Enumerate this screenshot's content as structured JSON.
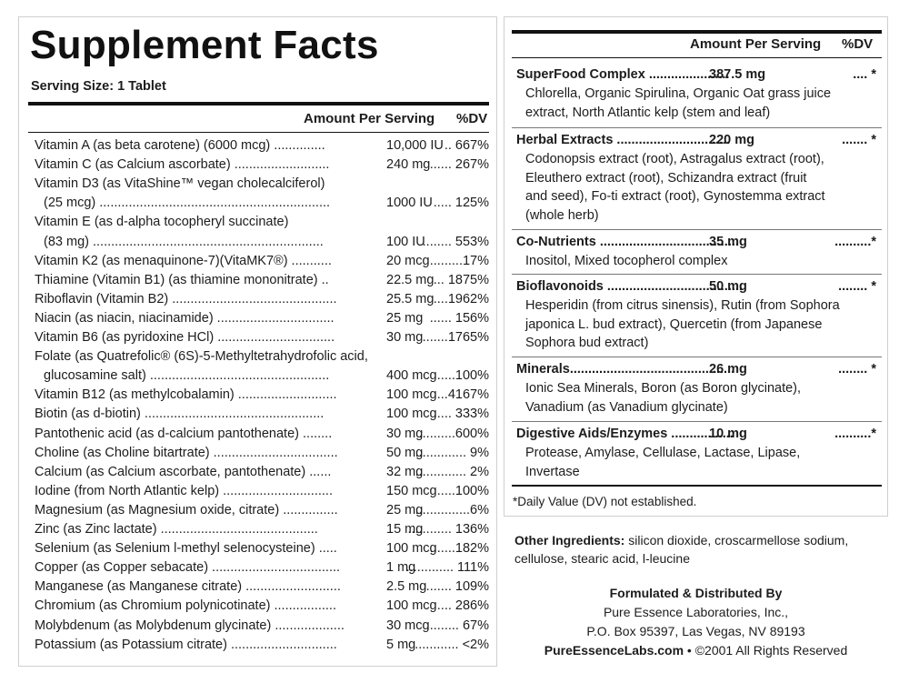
{
  "title": "Supplement Facts",
  "serving_size": "Serving Size: 1 Tablet",
  "headers": {
    "amount_per_serving": "Amount Per Serving",
    "dv": "%DV"
  },
  "vitamins": [
    {
      "name": "Vitamin A (as beta carotene) (6000 mcg) ..............",
      "amount": "10,000 IU",
      "dv": ".. 667%"
    },
    {
      "name": "Vitamin C (as Calcium ascorbate) ..........................",
      "amount": "240 mg",
      "dv": "...... 267%"
    },
    {
      "name": "Vitamin D3 (as VitaShine™ vegan cholecalciferol)",
      "amount": "",
      "dv": ""
    },
    {
      "name": "(25 mcg) ...............................................................",
      "amount": "1000 IU",
      "dv": "..... 125%"
    },
    {
      "name": "Vitamin E (as d-alpha tocopheryl succinate)",
      "amount": "",
      "dv": ""
    },
    {
      "name": "(83 mg) ...............................................................",
      "amount": "100 IU",
      "dv": "........ 553%"
    },
    {
      "name": "Vitamin K2 (as menaquinone-7)(VitaMK7®) ...........",
      "amount": "20 mcg",
      "dv": ".........17%"
    },
    {
      "name": "Thiamine (Vitamin B1) (as thiamine mononitrate) ..",
      "amount": "22.5 mg",
      "dv": "... 1875%"
    },
    {
      "name": "Riboflavin (Vitamin B2) .............................................",
      "amount": "25.5 mg",
      "dv": "....1962%"
    },
    {
      "name": "Niacin (as niacin, niacinamide) ................................",
      "amount": "25 mg",
      "dv": "...... 156%"
    },
    {
      "name": "Vitamin B6 (as pyridoxine HCl) ................................",
      "amount": "30 mg",
      "dv": ".......1765%"
    },
    {
      "name": "Folate (as Quatrefolic® (6S)-5-Methyltetrahydrofolic acid,",
      "amount": "",
      "dv": ""
    },
    {
      "name": "glucosamine salt) .................................................",
      "amount": "400 mcg",
      "dv": ".....100%"
    },
    {
      "name": "Vitamin B12 (as methylcobalamin) ...........................",
      "amount": "100 mcg",
      "dv": "...4167%"
    },
    {
      "name": "Biotin (as d-biotin) .................................................",
      "amount": "100 mcg",
      "dv": "..... 333%"
    },
    {
      "name": "Pantothenic acid (as d-calcium pantothenate) ........",
      "amount": "30 mg",
      "dv": "..........600%"
    },
    {
      "name": "Choline (as Choline bitartrate) ..................................",
      "amount": "50 mg",
      "dv": ".............. 9%"
    },
    {
      "name": "Calcium (as Calcium ascorbate, pantothenate) ......",
      "amount": "32 mg",
      "dv": ".............. 2%"
    },
    {
      "name": "Iodine (from North Atlantic kelp) ..............................",
      "amount": "150 mcg",
      "dv": ".....100%"
    },
    {
      "name": "Magnesium (as Magnesium oxide, citrate) ...............",
      "amount": "25 mg",
      "dv": "...............6%"
    },
    {
      "name": "Zinc (as Zinc lactate) ...........................................",
      "amount": "15 mg",
      "dv": "............ 136%"
    },
    {
      "name": "Selenium (as Selenium l-methyl selenocysteine) .....",
      "amount": "100 mcg",
      "dv": ".......182%"
    },
    {
      "name": "Copper (as Copper sebacate) ...................................",
      "amount": "1 mg",
      "dv": "............. 111%"
    },
    {
      "name": "Manganese (as Manganese citrate) ..........................",
      "amount": "2.5 mg",
      "dv": "....... 109%"
    },
    {
      "name": "Chromium (as Chromium polynicotinate) .................",
      "amount": "100 mcg",
      "dv": ".... 286%"
    },
    {
      "name": "Molybdenum (as Molybdenum glycinate) ...................",
      "amount": "30 mcg",
      "dv": "......... 67%"
    },
    {
      "name": "Potassium (as Potassium citrate) .............................",
      "amount": "5 mg",
      "dv": "............ <2%"
    }
  ],
  "blends": [
    {
      "name": "SuperFood Complex ......................",
      "amount": "387.5 mg",
      "dv": ".... *",
      "lines": [
        "Chlorella, Organic Spirulina, Organic Oat grass juice",
        "extract, North Atlantic kelp (stem and leaf)"
      ]
    },
    {
      "name": "Herbal Extracts ...............................",
      "amount": "220 mg",
      "dv": "....... *",
      "lines": [
        "Codonopsis extract (root), Astragalus extract (root),",
        "Eleuthero extract (root), Schizandra extract (fruit",
        "and seed), Fo-ti extract (root), Gynostemma extract",
        "(whole herb)"
      ]
    },
    {
      "name": "Co-Nutrients ......................................",
      "amount": "35 mg",
      "dv": "..........*",
      "lines": [
        "Inositol, Mixed tocopherol complex"
      ]
    },
    {
      "name": "Bioflavonoids .....................................",
      "amount": "50 mg",
      "dv": "........ *",
      "lines": [
        "Hesperidin (from citrus sinensis), Rutin (from Sophora",
        "japonica L. bud extract), Quercetin (from Japanese",
        "Sophora bud extract)"
      ]
    },
    {
      "name": "Minerals.............................................",
      "amount": "26 mg",
      "dv": "........ *",
      "lines": [
        "Ionic Sea Minerals, Boron (as Boron glycinate),",
        "Vanadium (as Vanadium glycinate)"
      ]
    },
    {
      "name": "Digestive Aids/Enzymes .................",
      "amount": "10 mg",
      "dv": "..........*",
      "lines": [
        "Protease, Amylase, Cellulase, Lactase, Lipase,",
        "Invertase"
      ]
    }
  ],
  "footnote": "*Daily Value (DV) not established.",
  "other_ingredients": {
    "label": "Other Ingredients:",
    "text": " silicon dioxide, croscarmellose sodium,",
    "text2": "cellulose, stearic acid, l-leucine"
  },
  "manufacturer": {
    "heading": "Formulated & Distributed By",
    "name": "Pure Essence Laboratories, Inc.,",
    "address": "P.O. Box 95397, Las Vegas, NV 89193",
    "website": "PureEssenceLabs.com",
    "copyright": " • ©2001 All Rights Reserved"
  }
}
